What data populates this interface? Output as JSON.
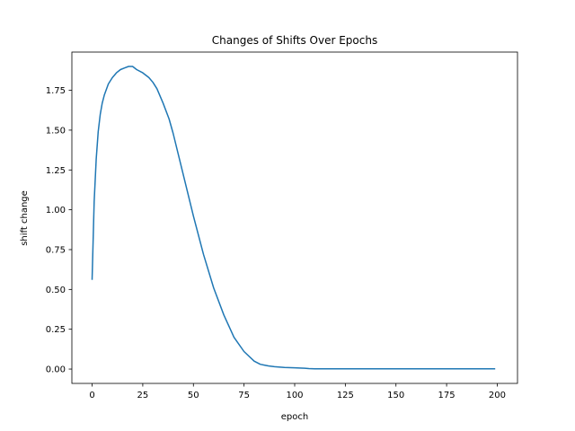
{
  "chart_data": {
    "type": "line",
    "title": "Changes of Shifts Over Epochs",
    "xlabel": "epoch",
    "ylabel": "shift change",
    "xlim": [
      -10,
      210
    ],
    "ylim": [
      -0.09,
      1.99
    ],
    "xticks": [
      0,
      25,
      50,
      75,
      100,
      125,
      150,
      175,
      200
    ],
    "yticks": [
      0.0,
      0.25,
      0.5,
      0.75,
      1.0,
      1.25,
      1.5,
      1.75
    ],
    "xtick_labels": [
      "0",
      "25",
      "50",
      "75",
      "100",
      "125",
      "150",
      "175",
      "200"
    ],
    "ytick_labels": [
      "0.00",
      "0.25",
      "0.50",
      "0.75",
      "1.00",
      "1.25",
      "1.50",
      "1.75"
    ],
    "grid": false,
    "series": [
      {
        "color": "#1f77b4",
        "x": [
          0,
          1,
          2,
          3,
          4,
          5,
          6,
          8,
          10,
          12,
          14,
          16,
          18,
          20,
          22,
          25,
          28,
          30,
          32,
          35,
          38,
          40,
          45,
          50,
          55,
          60,
          65,
          70,
          75,
          80,
          83,
          85,
          87,
          90,
          95,
          100,
          105,
          107,
          110,
          120,
          130,
          140,
          150,
          160,
          170,
          180,
          190,
          199
        ],
        "y": [
          0.56,
          1.05,
          1.32,
          1.49,
          1.6,
          1.67,
          1.72,
          1.79,
          1.83,
          1.86,
          1.88,
          1.89,
          1.9,
          1.9,
          1.88,
          1.86,
          1.83,
          1.8,
          1.76,
          1.67,
          1.57,
          1.48,
          1.22,
          0.96,
          0.72,
          0.51,
          0.34,
          0.2,
          0.11,
          0.05,
          0.03,
          0.025,
          0.02,
          0.015,
          0.01,
          0.008,
          0.005,
          0.003,
          0.002,
          0.002,
          0.002,
          0.002,
          0.002,
          0.002,
          0.002,
          0.002,
          0.002,
          0.002
        ]
      }
    ]
  }
}
